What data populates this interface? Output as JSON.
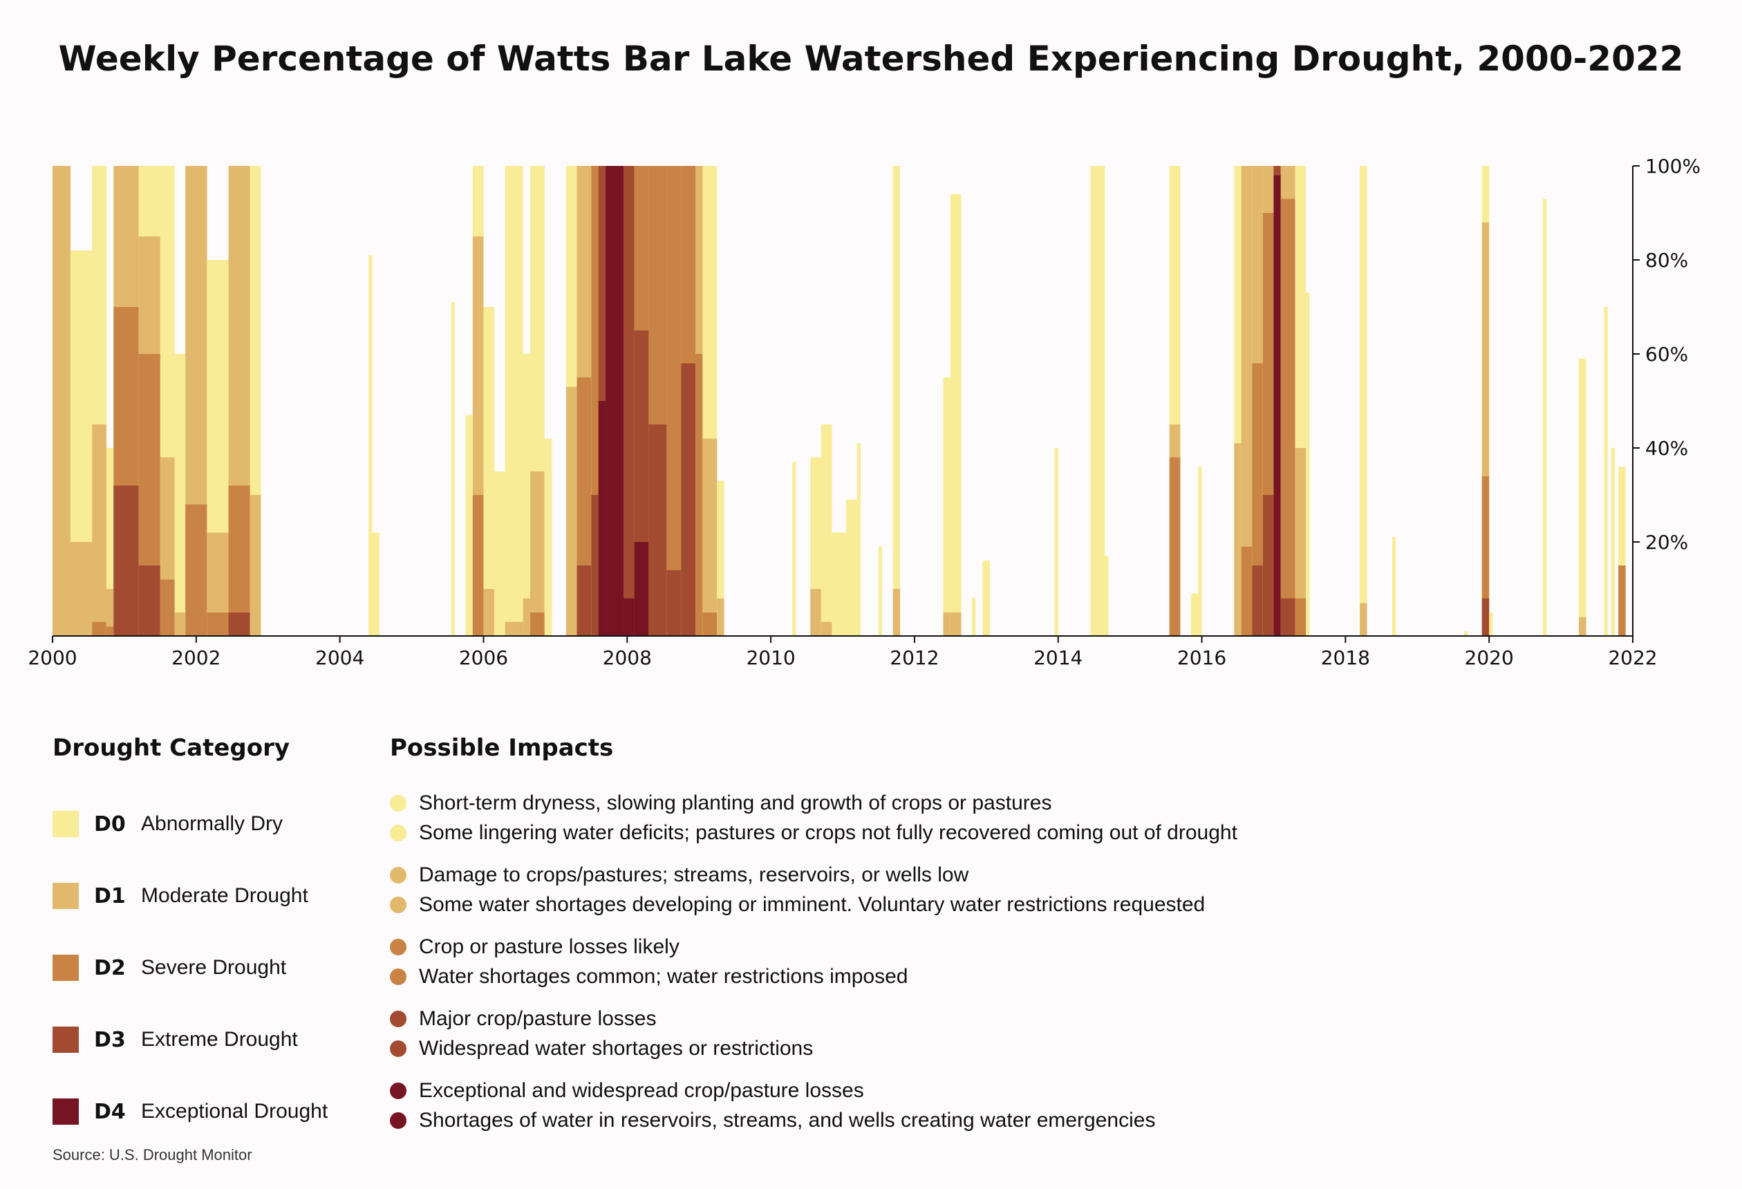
{
  "title": "Weekly Percentage of Watts Bar Lake Watershed Experiencing Drought, 2000-2022",
  "source": "Source: U.S. Drought Monitor",
  "colors": {
    "D0": "#f9ec96",
    "D1": "#e2b96c",
    "D2": "#c98445",
    "D3": "#a24b31",
    "D4": "#761423"
  },
  "legend": {
    "heading": "Drought Category",
    "items": [
      {
        "code": "D0",
        "name": "Abnormally Dry"
      },
      {
        "code": "D1",
        "name": "Moderate Drought"
      },
      {
        "code": "D2",
        "name": "Severe Drought"
      },
      {
        "code": "D3",
        "name": "Extreme Drought"
      },
      {
        "code": "D4",
        "name": "Exceptional Drought"
      }
    ]
  },
  "impacts": {
    "heading": "Possible Impacts",
    "groups": [
      {
        "code": "D0",
        "items": [
          "Short-term dryness, slowing planting and growth of crops or pastures",
          "Some lingering water deficits; pastures or crops not fully recovered coming out of drought"
        ]
      },
      {
        "code": "D1",
        "items": [
          "Damage to crops/pastures; streams, reservoirs, or wells low",
          "Some water shortages developing or imminent. Voluntary water restrictions requested"
        ]
      },
      {
        "code": "D2",
        "items": [
          "Crop or pasture losses likely",
          "Water shortages common; water restrictions imposed"
        ]
      },
      {
        "code": "D3",
        "items": [
          "Major crop/pasture losses",
          "Widespread water shortages or restrictions"
        ]
      },
      {
        "code": "D4",
        "items": [
          "Exceptional and widespread crop/pasture losses",
          "Shortages of water in reservoirs, streams, and wells creating water emergencies"
        ]
      }
    ]
  },
  "chart_data": {
    "type": "area",
    "xlim": [
      2000,
      2022
    ],
    "ylim": [
      0,
      100
    ],
    "x_ticks": [
      2000,
      2002,
      2004,
      2006,
      2008,
      2010,
      2012,
      2014,
      2016,
      2018,
      2020,
      2022
    ],
    "x_tick_labels": [
      "2000",
      "2002",
      "2004",
      "2006",
      "2008",
      "2010",
      "2012",
      "2014",
      "2016",
      "2018",
      "2020",
      "2022"
    ],
    "y_ticks": [
      20,
      40,
      60,
      80,
      100
    ],
    "y_tick_labels": [
      "20%",
      "40%",
      "60%",
      "80%",
      "100%"
    ],
    "series_order": [
      "D0",
      "D1",
      "D2",
      "D3",
      "D4"
    ],
    "note": "Values are approximate cumulative percentage of area at or above each category, by date (decimal year).",
    "events": [
      {
        "x": [
          2000.0,
          2000.25
        ],
        "D0": 100,
        "D1": 100,
        "D2": 0,
        "D3": 0,
        "D4": 0
      },
      {
        "x": [
          2000.25,
          2000.55
        ],
        "D0": 82,
        "D1": 20,
        "D2": 0,
        "D3": 0,
        "D4": 0
      },
      {
        "x": [
          2000.55,
          2000.75
        ],
        "D0": 100,
        "D1": 45,
        "D2": 3,
        "D3": 0,
        "D4": 0
      },
      {
        "x": [
          2000.75,
          2000.85
        ],
        "D0": 40,
        "D1": 10,
        "D2": 2,
        "D3": 0,
        "D4": 0
      },
      {
        "x": [
          2000.85,
          2001.2
        ],
        "D0": 100,
        "D1": 100,
        "D2": 70,
        "D3": 32,
        "D4": 0
      },
      {
        "x": [
          2001.2,
          2001.5
        ],
        "D0": 100,
        "D1": 85,
        "D2": 60,
        "D3": 15,
        "D4": 0
      },
      {
        "x": [
          2001.5,
          2001.7
        ],
        "D0": 100,
        "D1": 38,
        "D2": 12,
        "D3": 0,
        "D4": 0
      },
      {
        "x": [
          2001.7,
          2001.85
        ],
        "D0": 60,
        "D1": 5,
        "D2": 0,
        "D3": 0,
        "D4": 0
      },
      {
        "x": [
          2001.85,
          2002.15
        ],
        "D0": 100,
        "D1": 100,
        "D2": 28,
        "D3": 0,
        "D4": 0
      },
      {
        "x": [
          2002.15,
          2002.45
        ],
        "D0": 80,
        "D1": 22,
        "D2": 5,
        "D3": 0,
        "D4": 0
      },
      {
        "x": [
          2002.45,
          2002.75
        ],
        "D0": 100,
        "D1": 100,
        "D2": 32,
        "D3": 5,
        "D4": 0
      },
      {
        "x": [
          2002.75,
          2002.9
        ],
        "D0": 100,
        "D1": 30,
        "D2": 0,
        "D3": 0,
        "D4": 0
      },
      {
        "x": [
          2004.4,
          2004.45
        ],
        "D0": 81,
        "D1": 0,
        "D2": 0,
        "D3": 0,
        "D4": 0
      },
      {
        "x": [
          2004.45,
          2004.55
        ],
        "D0": 22,
        "D1": 0,
        "D2": 0,
        "D3": 0,
        "D4": 0
      },
      {
        "x": [
          2005.55,
          2005.6
        ],
        "D0": 71,
        "D1": 0,
        "D2": 0,
        "D3": 0,
        "D4": 0
      },
      {
        "x": [
          2005.75,
          2005.85
        ],
        "D0": 47,
        "D1": 0,
        "D2": 0,
        "D3": 0,
        "D4": 0
      },
      {
        "x": [
          2005.85,
          2006.0
        ],
        "D0": 100,
        "D1": 85,
        "D2": 30,
        "D3": 0,
        "D4": 0
      },
      {
        "x": [
          2006.0,
          2006.15
        ],
        "D0": 70,
        "D1": 10,
        "D2": 0,
        "D3": 0,
        "D4": 0
      },
      {
        "x": [
          2006.15,
          2006.3
        ],
        "D0": 35,
        "D1": 0,
        "D2": 0,
        "D3": 0,
        "D4": 0
      },
      {
        "x": [
          2006.3,
          2006.55
        ],
        "D0": 100,
        "D1": 3,
        "D2": 0,
        "D3": 0,
        "D4": 0
      },
      {
        "x": [
          2006.55,
          2006.65
        ],
        "D0": 60,
        "D1": 8,
        "D2": 0,
        "D3": 0,
        "D4": 0
      },
      {
        "x": [
          2006.65,
          2006.85
        ],
        "D0": 100,
        "D1": 35,
        "D2": 5,
        "D3": 0,
        "D4": 0
      },
      {
        "x": [
          2006.85,
          2006.95
        ],
        "D0": 42,
        "D1": 0,
        "D2": 0,
        "D3": 0,
        "D4": 0
      },
      {
        "x": [
          2007.15,
          2007.3
        ],
        "D0": 100,
        "D1": 53,
        "D2": 0,
        "D3": 0,
        "D4": 0
      },
      {
        "x": [
          2007.3,
          2007.5
        ],
        "D0": 100,
        "D1": 100,
        "D2": 55,
        "D3": 15,
        "D4": 0
      },
      {
        "x": [
          2007.5,
          2007.6
        ],
        "D0": 100,
        "D1": 100,
        "D2": 100,
        "D3": 30,
        "D4": 0
      },
      {
        "x": [
          2007.6,
          2007.7
        ],
        "D0": 100,
        "D1": 100,
        "D2": 100,
        "D3": 100,
        "D4": 50
      },
      {
        "x": [
          2007.7,
          2007.95
        ],
        "D0": 100,
        "D1": 100,
        "D2": 100,
        "D3": 100,
        "D4": 100
      },
      {
        "x": [
          2007.95,
          2008.1
        ],
        "D0": 100,
        "D1": 100,
        "D2": 100,
        "D3": 100,
        "D4": 8
      },
      {
        "x": [
          2008.1,
          2008.3
        ],
        "D0": 100,
        "D1": 100,
        "D2": 100,
        "D3": 65,
        "D4": 20
      },
      {
        "x": [
          2008.3,
          2008.55
        ],
        "D0": 100,
        "D1": 100,
        "D2": 100,
        "D3": 45,
        "D4": 0
      },
      {
        "x": [
          2008.55,
          2008.75
        ],
        "D0": 100,
        "D1": 100,
        "D2": 100,
        "D3": 14,
        "D4": 0
      },
      {
        "x": [
          2008.75,
          2008.95
        ],
        "D0": 100,
        "D1": 100,
        "D2": 100,
        "D3": 58,
        "D4": 0
      },
      {
        "x": [
          2008.95,
          2009.05
        ],
        "D0": 100,
        "D1": 100,
        "D2": 60,
        "D3": 0,
        "D4": 0
      },
      {
        "x": [
          2009.05,
          2009.25
        ],
        "D0": 100,
        "D1": 42,
        "D2": 5,
        "D3": 0,
        "D4": 0
      },
      {
        "x": [
          2009.25,
          2009.35
        ],
        "D0": 33,
        "D1": 8,
        "D2": 0,
        "D3": 0,
        "D4": 0
      },
      {
        "x": [
          2010.3,
          2010.35
        ],
        "D0": 37,
        "D1": 0,
        "D2": 0,
        "D3": 0,
        "D4": 0
      },
      {
        "x": [
          2010.55,
          2010.7
        ],
        "D0": 38,
        "D1": 10,
        "D2": 0,
        "D3": 0,
        "D4": 0
      },
      {
        "x": [
          2010.7,
          2010.85
        ],
        "D0": 45,
        "D1": 3,
        "D2": 0,
        "D3": 0,
        "D4": 0
      },
      {
        "x": [
          2010.85,
          2011.05
        ],
        "D0": 22,
        "D1": 0,
        "D2": 0,
        "D3": 0,
        "D4": 0
      },
      {
        "x": [
          2011.05,
          2011.2
        ],
        "D0": 29,
        "D1": 0,
        "D2": 0,
        "D3": 0,
        "D4": 0
      },
      {
        "x": [
          2011.2,
          2011.25
        ],
        "D0": 41,
        "D1": 0,
        "D2": 0,
        "D3": 0,
        "D4": 0
      },
      {
        "x": [
          2011.5,
          2011.55
        ],
        "D0": 19,
        "D1": 0,
        "D2": 0,
        "D3": 0,
        "D4": 0
      },
      {
        "x": [
          2011.7,
          2011.8
        ],
        "D0": 100,
        "D1": 10,
        "D2": 0,
        "D3": 0,
        "D4": 0
      },
      {
        "x": [
          2012.4,
          2012.5
        ],
        "D0": 55,
        "D1": 5,
        "D2": 0,
        "D3": 0,
        "D4": 0
      },
      {
        "x": [
          2012.5,
          2012.65
        ],
        "D0": 94,
        "D1": 5,
        "D2": 0,
        "D3": 0,
        "D4": 0
      },
      {
        "x": [
          2012.8,
          2012.85
        ],
        "D0": 8,
        "D1": 0,
        "D2": 0,
        "D3": 0,
        "D4": 0
      },
      {
        "x": [
          2012.95,
          2013.05
        ],
        "D0": 16,
        "D1": 0,
        "D2": 0,
        "D3": 0,
        "D4": 0
      },
      {
        "x": [
          2013.95,
          2014.0
        ],
        "D0": 40,
        "D1": 0,
        "D2": 0,
        "D3": 0,
        "D4": 0
      },
      {
        "x": [
          2014.45,
          2014.65
        ],
        "D0": 100,
        "D1": 0,
        "D2": 0,
        "D3": 0,
        "D4": 0
      },
      {
        "x": [
          2014.65,
          2014.7
        ],
        "D0": 17,
        "D1": 0,
        "D2": 0,
        "D3": 0,
        "D4": 0
      },
      {
        "x": [
          2015.55,
          2015.7
        ],
        "D0": 100,
        "D1": 45,
        "D2": 38,
        "D3": 0,
        "D4": 0
      },
      {
        "x": [
          2015.85,
          2015.95
        ],
        "D0": 9,
        "D1": 0,
        "D2": 0,
        "D3": 0,
        "D4": 0
      },
      {
        "x": [
          2015.95,
          2016.0
        ],
        "D0": 36,
        "D1": 0,
        "D2": 0,
        "D3": 0,
        "D4": 0
      },
      {
        "x": [
          2016.45,
          2016.55
        ],
        "D0": 100,
        "D1": 41,
        "D2": 0,
        "D3": 0,
        "D4": 0
      },
      {
        "x": [
          2016.55,
          2016.7
        ],
        "D0": 100,
        "D1": 100,
        "D2": 19,
        "D3": 0,
        "D4": 0
      },
      {
        "x": [
          2016.7,
          2016.85
        ],
        "D0": 100,
        "D1": 100,
        "D2": 58,
        "D3": 15,
        "D4": 0
      },
      {
        "x": [
          2016.85,
          2017.0
        ],
        "D0": 100,
        "D1": 100,
        "D2": 90,
        "D3": 30,
        "D4": 0
      },
      {
        "x": [
          2017.0,
          2017.1
        ],
        "D0": 100,
        "D1": 100,
        "D2": 100,
        "D3": 100,
        "D4": 98
      },
      {
        "x": [
          2017.1,
          2017.3
        ],
        "D0": 100,
        "D1": 100,
        "D2": 93,
        "D3": 8,
        "D4": 0
      },
      {
        "x": [
          2017.3,
          2017.45
        ],
        "D0": 100,
        "D1": 40,
        "D2": 8,
        "D3": 0,
        "D4": 0
      },
      {
        "x": [
          2017.45,
          2017.5
        ],
        "D0": 73,
        "D1": 0,
        "D2": 0,
        "D3": 0,
        "D4": 0
      },
      {
        "x": [
          2018.2,
          2018.3
        ],
        "D0": 100,
        "D1": 7,
        "D2": 0,
        "D3": 0,
        "D4": 0
      },
      {
        "x": [
          2018.65,
          2018.7
        ],
        "D0": 21,
        "D1": 0,
        "D2": 0,
        "D3": 0,
        "D4": 0
      },
      {
        "x": [
          2019.65,
          2019.7
        ],
        "D0": 1,
        "D1": 0,
        "D2": 0,
        "D3": 0,
        "D4": 0
      },
      {
        "x": [
          2019.9,
          2020.0
        ],
        "D0": 100,
        "D1": 88,
        "D2": 34,
        "D3": 8,
        "D4": 0
      },
      {
        "x": [
          2020.0,
          2020.05
        ],
        "D0": 5,
        "D1": 0,
        "D2": 0,
        "D3": 0,
        "D4": 0
      },
      {
        "x": [
          2020.75,
          2020.8
        ],
        "D0": 93,
        "D1": 0,
        "D2": 0,
        "D3": 0,
        "D4": 0
      },
      {
        "x": [
          2021.25,
          2021.35
        ],
        "D0": 59,
        "D1": 4,
        "D2": 0,
        "D3": 0,
        "D4": 0
      },
      {
        "x": [
          2021.6,
          2021.65
        ],
        "D0": 70,
        "D1": 0,
        "D2": 0,
        "D3": 0,
        "D4": 0
      },
      {
        "x": [
          2021.7,
          2021.75
        ],
        "D0": 40,
        "D1": 0,
        "D2": 0,
        "D3": 0,
        "D4": 0
      },
      {
        "x": [
          2021.8,
          2021.9
        ],
        "D0": 36,
        "D1": 15,
        "D2": 15,
        "D3": 0,
        "D4": 0
      }
    ]
  }
}
